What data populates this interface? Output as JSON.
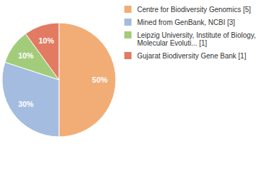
{
  "chart_data": {
    "type": "pie",
    "categories": [
      "Centre for Biodiversity Genomics [5]",
      "Mined from GenBank, NCBI [3]",
      "Leipzig University, Institute of Biology, Molecular Evoluti... [1]",
      "Gujarat Biodiversity Gene Bank [1]"
    ],
    "values": [
      50,
      30,
      10,
      10
    ],
    "value_labels": [
      "50%",
      "30%",
      "10%",
      "10%"
    ],
    "colors": [
      "#f2ad76",
      "#a4bce0",
      "#a3cc7a",
      "#e27b62"
    ],
    "data_labels": true,
    "legend": "right"
  }
}
